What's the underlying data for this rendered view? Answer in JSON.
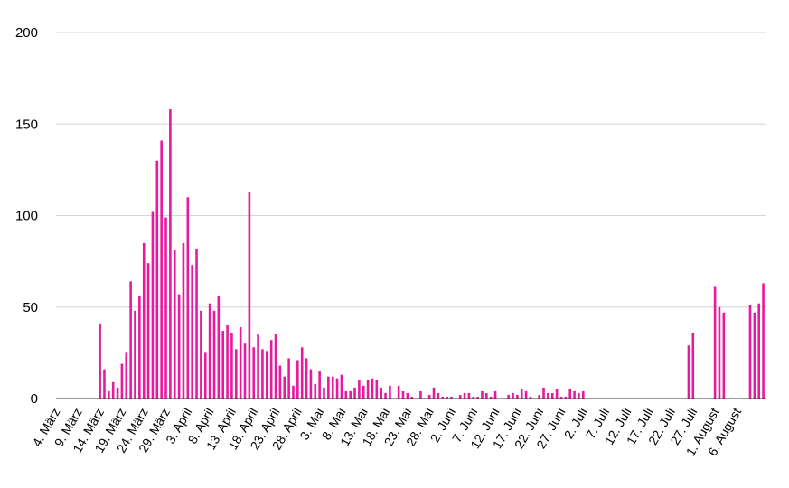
{
  "chart_data": {
    "type": "bar",
    "title": "",
    "xlabel": "",
    "ylabel": "",
    "ylim": [
      0,
      200
    ],
    "yticks": [
      0,
      50,
      100,
      150,
      200
    ],
    "grid": true,
    "legend": "none",
    "bar_color": "#e8199c",
    "start_date": "4. März",
    "tick_every_n_days": 5,
    "x_tick_labels": [
      "4. März",
      "9. März",
      "14. März",
      "19. März",
      "24. März",
      "29. März",
      "3. April",
      "8. April",
      "13. April",
      "18. April",
      "23. April",
      "28. April",
      "3. Mai",
      "8. Mai",
      "13. Mai",
      "18. Mai",
      "23. Mai",
      "28. Mai",
      "2. Juni",
      "7. Juni",
      "12. Juni",
      "17. Juni",
      "22. Juni",
      "27. Juni",
      "2. Juli",
      "7. Juli",
      "12. Juli",
      "17. Juli",
      "22. Juli",
      "27. Juli",
      "1. August",
      "6. August"
    ],
    "values": [
      0,
      0,
      0,
      0,
      0,
      0,
      0,
      0,
      0,
      0,
      41,
      16,
      4,
      9,
      6,
      19,
      25,
      64,
      48,
      56,
      85,
      74,
      102,
      130,
      141,
      99,
      158,
      81,
      57,
      85,
      110,
      73,
      82,
      48,
      25,
      52,
      48,
      56,
      37,
      40,
      36,
      27,
      39,
      30,
      113,
      28,
      35,
      27,
      26,
      32,
      35,
      18,
      12,
      22,
      7,
      21,
      28,
      22,
      16,
      8,
      15,
      6,
      12,
      12,
      11,
      13,
      4,
      4,
      6,
      10,
      7,
      10,
      11,
      10,
      6,
      3,
      7,
      0,
      7,
      4,
      3,
      1,
      0,
      4,
      0,
      2,
      6,
      3,
      1,
      1,
      1,
      0,
      2,
      3,
      3,
      1,
      1,
      4,
      3,
      1,
      4,
      0,
      0,
      2,
      3,
      2,
      5,
      4,
      1,
      0,
      2,
      6,
      3,
      3,
      5,
      1,
      1,
      5,
      4,
      3,
      4,
      0,
      0,
      0,
      0,
      0,
      0,
      0,
      0,
      0,
      0,
      0,
      0,
      0,
      0,
      0,
      0,
      0,
      0,
      0,
      0,
      0,
      0,
      0,
      29,
      36,
      0,
      0,
      0,
      0,
      61,
      50,
      47,
      0,
      0,
      0,
      0,
      0,
      51,
      47,
      52,
      63
    ]
  }
}
